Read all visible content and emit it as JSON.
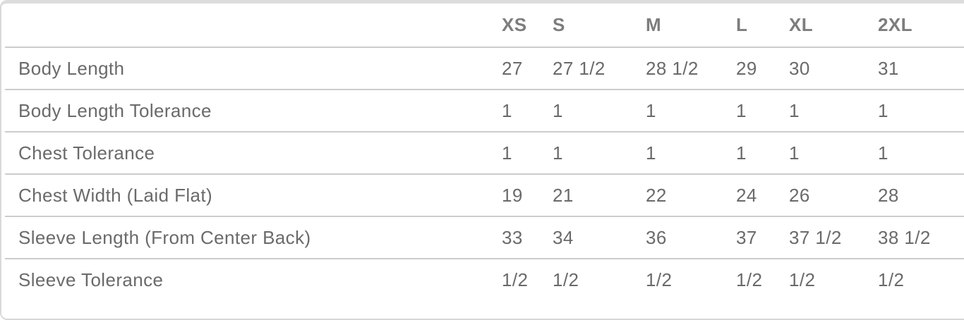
{
  "size_chart": {
    "columns": [
      "",
      "XS",
      "S",
      "M",
      "L",
      "XL",
      "2XL"
    ],
    "rows": [
      {
        "label": "Body Length",
        "values": [
          "27",
          "27 1/2",
          "28 1/2",
          "29",
          "30",
          "31"
        ]
      },
      {
        "label": "Body Length Tolerance",
        "values": [
          "1",
          "1",
          "1",
          "1",
          "1",
          "1"
        ]
      },
      {
        "label": "Chest Tolerance",
        "values": [
          "1",
          "1",
          "1",
          "1",
          "1",
          "1"
        ]
      },
      {
        "label": "Chest Width (Laid Flat)",
        "values": [
          "19",
          "21",
          "22",
          "24",
          "26",
          "28"
        ]
      },
      {
        "label": "Sleeve Length (From Center Back)",
        "values": [
          "33",
          "34",
          "36",
          "37",
          "37 1/2",
          "38 1/2"
        ]
      },
      {
        "label": "Sleeve Tolerance",
        "values": [
          "1/2",
          "1/2",
          "1/2",
          "1/2",
          "1/2",
          "1/2"
        ]
      }
    ]
  },
  "colors": {
    "body_text": "#6a6a6a",
    "header_text": "#7d7d7d",
    "divider": "#cccccc",
    "top_border": "#dcdcdc",
    "card_border": "#d9d9d9",
    "background": "#ffffff"
  }
}
